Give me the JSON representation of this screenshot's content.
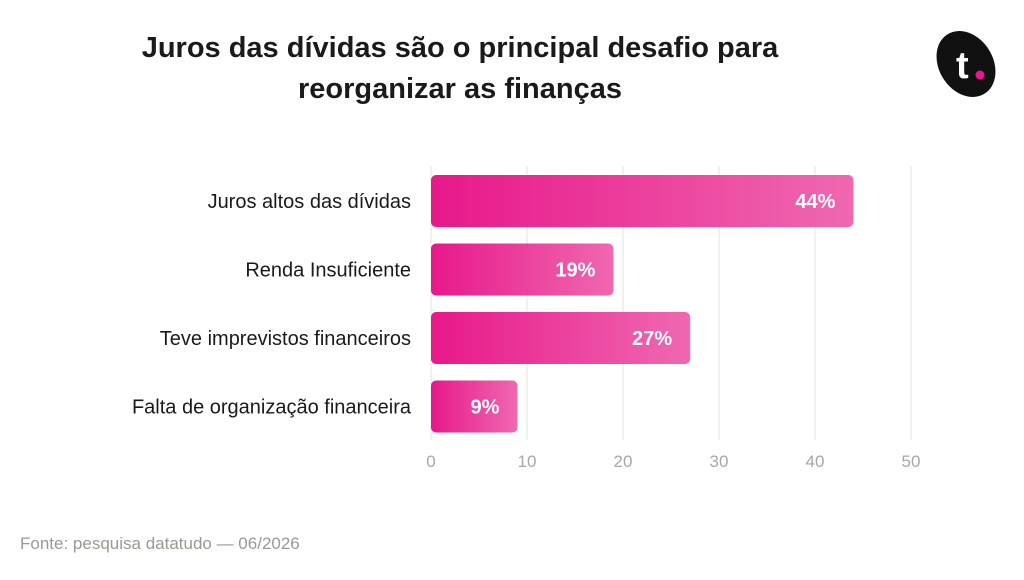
{
  "title": {
    "line1": "Juros das dívidas são o principal desafio para",
    "line2": "reorganizar as finanças"
  },
  "logo": {
    "letter": "t",
    "bg_color": "#111111",
    "dot_color": "#e8168c"
  },
  "chart_data": {
    "type": "bar",
    "orientation": "horizontal",
    "categories": [
      "Juros altos das dívidas",
      "Renda Insuficiente",
      "Teve imprevistos financeiros",
      "Falta de organização financeira"
    ],
    "values": [
      44,
      19,
      27,
      9
    ],
    "value_labels": [
      "44%",
      "19%",
      "27%",
      "9%"
    ],
    "xlim": [
      0,
      50
    ],
    "xticks": [
      0,
      10,
      20,
      30,
      40,
      50
    ],
    "grid": true,
    "colors": {
      "bar_start": "#e8188a",
      "bar_end": "#f068b0",
      "grid": "#e6e6e0",
      "tick": "#a8a8a0"
    }
  },
  "source": "Fonte: pesquisa datatudo — 06/2026"
}
